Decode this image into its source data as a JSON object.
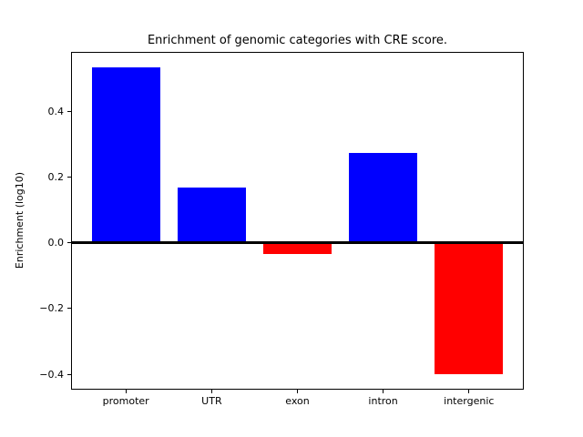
{
  "chart_data": {
    "type": "bar",
    "title": "Enrichment of genomic categories with CRE score.",
    "xlabel": "",
    "ylabel": "Enrichment (log10)",
    "categories": [
      "promoter",
      "UTR",
      "exon",
      "intron",
      "intergenic"
    ],
    "values": [
      0.535,
      0.168,
      -0.035,
      0.273,
      -0.401
    ],
    "colors": [
      "#0000ff",
      "#0000ff",
      "#ff0000",
      "#0000ff",
      "#ff0000"
    ],
    "positive_color": "#0000ff",
    "negative_color": "#ff0000",
    "yticks": [
      0.4,
      0.2,
      0.0,
      -0.2,
      -0.4
    ],
    "ytick_labels": [
      "0.4",
      "0.2",
      "0.0",
      "−0.2",
      "−0.4"
    ],
    "ylim": [
      -0.447,
      0.582
    ],
    "bar_width_frac": 0.8,
    "grid": false,
    "zero_line": true,
    "legend_position": "none",
    "background_color": "#ffffff",
    "axes_color": "#000000"
  }
}
